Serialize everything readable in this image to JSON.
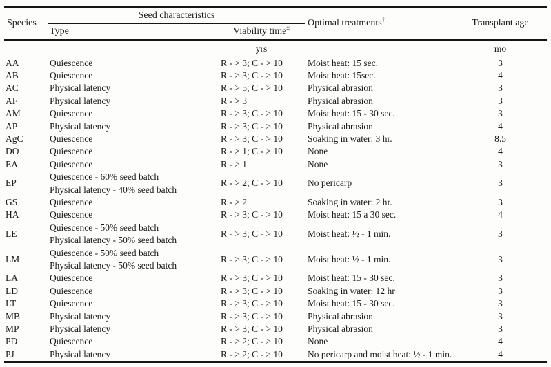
{
  "table": {
    "header": {
      "species": "Species",
      "seed_characteristics": "Seed characteristics",
      "type": "Type",
      "viability_time": "Viability time",
      "viability_time_sup": "‡",
      "optimal_treatments": "Optimal treatments",
      "optimal_treatments_sup": "†",
      "transplant_age": "Transplant age",
      "viability_unit": "yrs",
      "age_unit": "mo"
    },
    "rows": [
      {
        "species": "AA",
        "type_lines": [
          "Quiescence"
        ],
        "viability": "R - > 3; C - > 10",
        "treatment": "Moist heat: 15 sec.",
        "age": "3"
      },
      {
        "species": "AB",
        "type_lines": [
          "Quiescence"
        ],
        "viability": "R - > 3; C - > 10",
        "treatment": "Moist heat: 15sec.",
        "age": "4"
      },
      {
        "species": "AC",
        "type_lines": [
          "Physical latency"
        ],
        "viability": "R - > 5; C - > 10",
        "treatment": "Physical abrasion",
        "age": "3"
      },
      {
        "species": "AF",
        "type_lines": [
          "Physical latency"
        ],
        "viability": "R - > 3",
        "treatment": "Physical abrasion",
        "age": "3"
      },
      {
        "species": "AM",
        "type_lines": [
          "Quiescence"
        ],
        "viability": "R - > 3; C - > 10",
        "treatment": "Moist heat: 15 - 30 sec.",
        "age": "3"
      },
      {
        "species": "AP",
        "type_lines": [
          "Physical latency"
        ],
        "viability": "R - > 3; C - > 10",
        "treatment": "Physical abrasion",
        "age": "4"
      },
      {
        "species": "AgC",
        "type_lines": [
          "Quiescence"
        ],
        "viability": "R - > 3; C - > 10",
        "treatment": "Soaking in water: 3 hr.",
        "age": "8.5"
      },
      {
        "species": "DO",
        "type_lines": [
          "Quiescence"
        ],
        "viability": "R - > 1; C - > 10",
        "treatment": "None",
        "age": "4"
      },
      {
        "species": "EA",
        "type_lines": [
          "Quiescence"
        ],
        "viability": "R - > 1",
        "treatment": "None",
        "age": "3"
      },
      {
        "species": "EP",
        "type_lines": [
          "Quiescence - 60% seed batch",
          "Physical latency - 40% seed batch"
        ],
        "viability": "R - > 2; C - > 10",
        "treatment": "No pericarp",
        "age": "3"
      },
      {
        "species": "GS",
        "type_lines": [
          "Quiescence"
        ],
        "viability": "R - > 2",
        "treatment": "Soaking in water: 2 hr.",
        "age": "3"
      },
      {
        "species": "HA",
        "type_lines": [
          "Quiescence"
        ],
        "viability": "R - > 3; C - > 10",
        "treatment": "Moist heat: 15 a 30 sec.",
        "age": "4"
      },
      {
        "species": "LE",
        "type_lines": [
          "Quiescence - 50% seed batch",
          "Physical latency - 50% seed batch"
        ],
        "viability": "R - > 3; C - > 10",
        "treatment": "Moist heat: ½  - 1 min.",
        "age": "3"
      },
      {
        "species": "LM",
        "type_lines": [
          "Quiescence - 50% seed batch",
          "Physical latency - 50% seed batch"
        ],
        "viability": "R - > 3; C - > 10",
        "treatment": "Moist heat: ½  - 1 min.",
        "age": "3"
      },
      {
        "species": "LA",
        "type_lines": [
          "Quiescence"
        ],
        "viability": "R - > 3; C - > 10",
        "treatment": "Moist heat: 15 - 30 sec.",
        "age": "3"
      },
      {
        "species": "LD",
        "type_lines": [
          "Quiescence"
        ],
        "viability": "R - > 3; C - > 10",
        "treatment": "Soaking in water: 12 hr",
        "age": "3"
      },
      {
        "species": "LT",
        "type_lines": [
          "Quiescence"
        ],
        "viability": "R - > 3; C - > 10",
        "treatment": "Moist heat: 15 - 30 sec.",
        "age": "3"
      },
      {
        "species": "MB",
        "type_lines": [
          "Physical latency"
        ],
        "viability": "R - > 3; C - > 10",
        "treatment": "Physical abrasion",
        "age": "3"
      },
      {
        "species": "MP",
        "type_lines": [
          "Physical latency"
        ],
        "viability": "R - > 3; C - > 10",
        "treatment": "Physical abrasion",
        "age": "3"
      },
      {
        "species": "PD",
        "type_lines": [
          "Quiescence"
        ],
        "viability": "R - > 2; C - > 10",
        "treatment": "None",
        "age": "4"
      },
      {
        "species": "PJ",
        "type_lines": [
          "Physical latency"
        ],
        "viability": "R - > 2; C - > 10",
        "treatment": "No pericarp and moist heat: ½  - 1 min.",
        "age": "4"
      }
    ]
  }
}
